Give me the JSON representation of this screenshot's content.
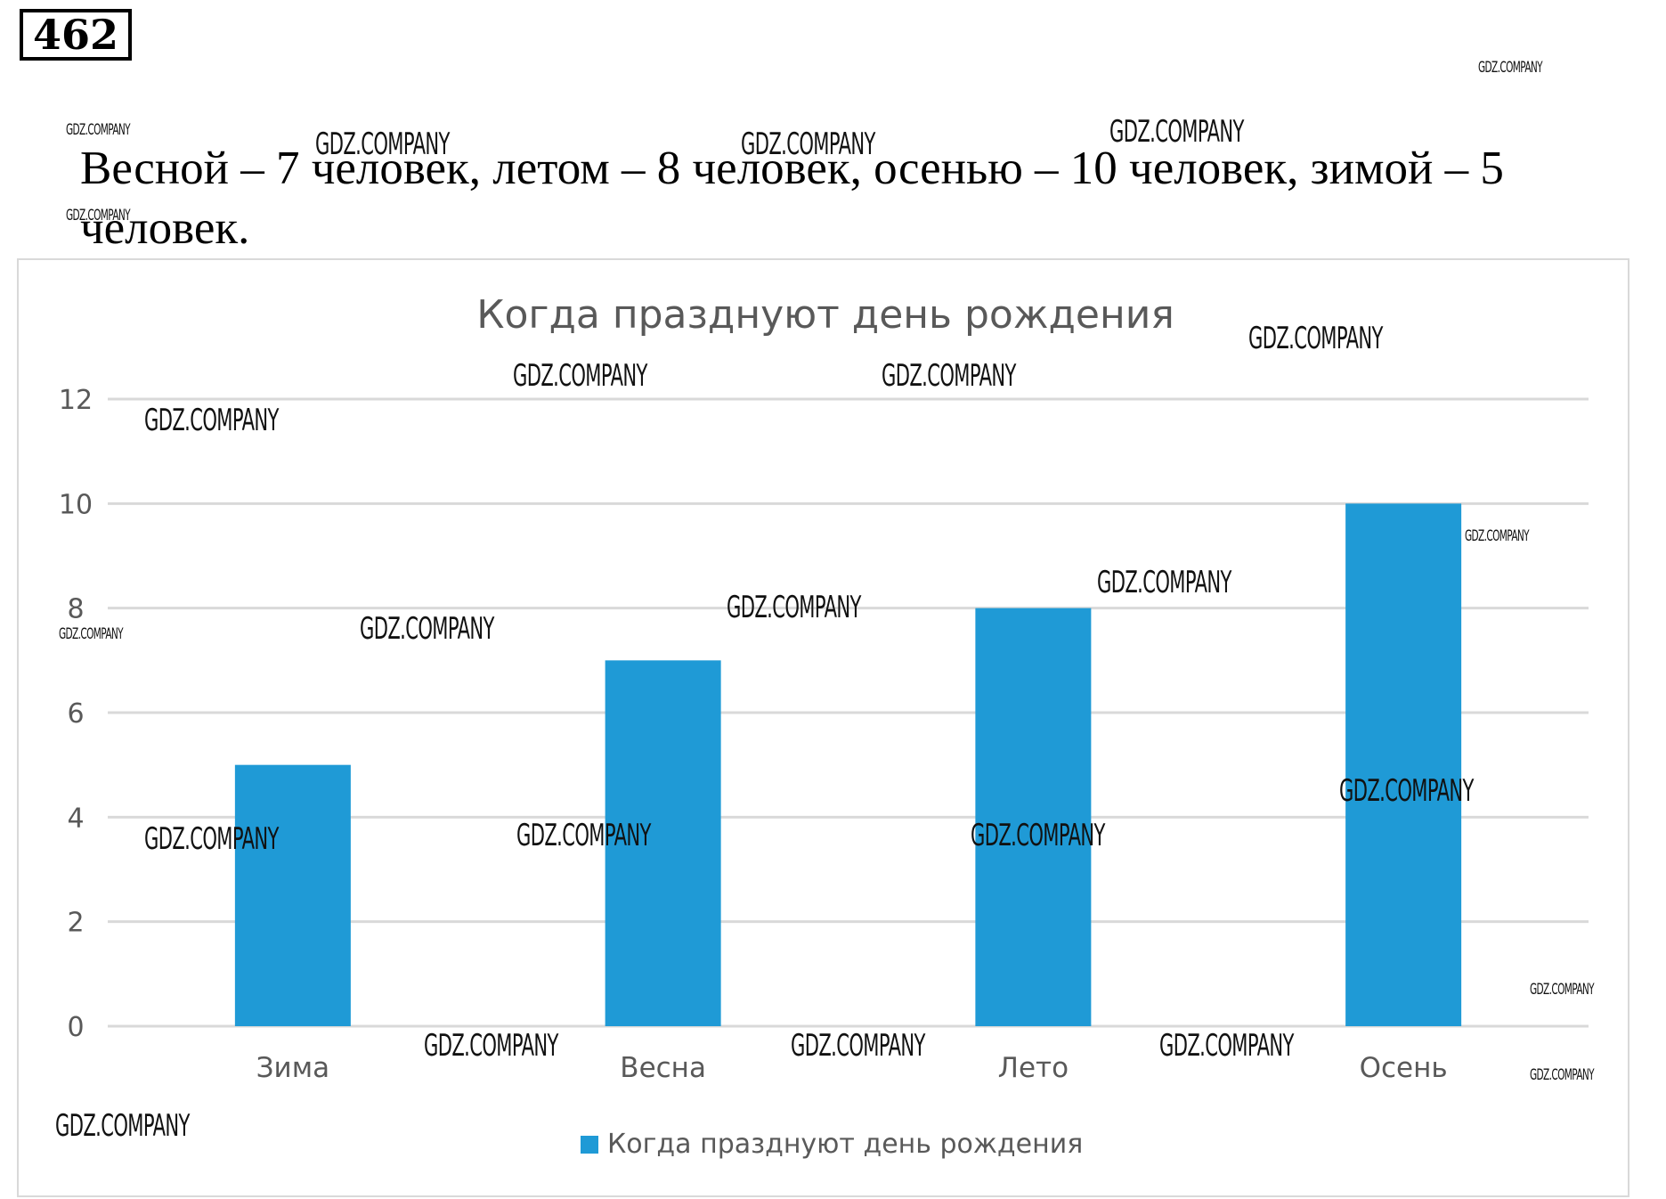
{
  "problem": {
    "number": "462"
  },
  "answer_line": "Весной – 7 человек, летом – 8 человек, осенью – 10 человек, зимой – 5 человек.",
  "watermark": "GDZ.COMPANY",
  "colors": {
    "bar": "#1f9ad6",
    "grid": "#d9d9d9",
    "title": "#595959",
    "axis_text": "#595959"
  },
  "chart_data": {
    "type": "bar",
    "title": "Когда празднуют день рождения",
    "categories": [
      "Зима",
      "Весна",
      "Лето",
      "Осень"
    ],
    "series": [
      {
        "name": "Когда празднуют день рождения",
        "values": [
          5,
          7,
          8,
          10
        ]
      }
    ],
    "y_ticks": [
      "0",
      "2",
      "4",
      "6",
      "8",
      "10",
      "12"
    ],
    "ylim": [
      0,
      12
    ],
    "grid": true,
    "legend_position": "bottom"
  }
}
